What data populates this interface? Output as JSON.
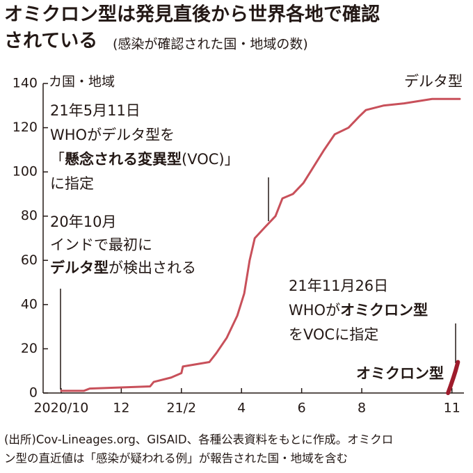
{
  "chart_data": {
    "type": "line",
    "title": [
      "オミクロン型は発見直後から世界各地で確認",
      "されている"
    ],
    "subtitle": "(感染が確認された国・地域の数)",
    "y_label": "カ国・地域",
    "xlim": [
      -0.6,
      13.4
    ],
    "ylim": [
      0,
      140
    ],
    "xticks": [
      {
        "value": 0,
        "label": "2020/10"
      },
      {
        "value": 2,
        "label": "12"
      },
      {
        "value": 4,
        "label": "21/2"
      },
      {
        "value": 6,
        "label": "4"
      },
      {
        "value": 8,
        "label": "6"
      },
      {
        "value": 10,
        "label": "8"
      },
      {
        "value": 13,
        "label": "11"
      }
    ],
    "yticks": [
      0,
      20,
      40,
      60,
      80,
      100,
      120,
      140
    ],
    "series": [
      {
        "name": "デルタ型",
        "color": "#c8505a",
        "width": 3,
        "x": [
          0,
          0.76,
          0.95,
          2.96,
          3.08,
          3.66,
          4.0,
          4.05,
          4.93,
          5.16,
          5.51,
          5.86,
          6.09,
          6.27,
          6.44,
          6.78,
          7.13,
          7.36,
          7.71,
          8.06,
          8.29,
          8.75,
          9.1,
          9.56,
          9.91,
          10.14,
          10.72,
          11.41,
          12.34,
          13.26
        ],
        "values": [
          1,
          1,
          2,
          3,
          5,
          7,
          9,
          12,
          14,
          18,
          25,
          35,
          45,
          60,
          70,
          75,
          80,
          88,
          90,
          95,
          100,
          110,
          117,
          120,
          125,
          128,
          130,
          131,
          133,
          133
        ]
      },
      {
        "name": "オミクロン型",
        "color": "#9e1c2c",
        "width": 6,
        "x": [
          12.87,
          12.95,
          13.05,
          13.12,
          13.2
        ],
        "values": [
          0,
          3,
          7,
          10,
          14
        ]
      }
    ],
    "annotations": [
      {
        "lines": [
          [
            {
              "text": "21年5月11日"
            }
          ],
          [
            {
              "text": "WHOがデルタ型を"
            }
          ],
          [
            {
              "text": "「"
            },
            {
              "text": "懸念される変異型",
              "bold": true
            },
            {
              "text": "(VOC)」"
            }
          ],
          [
            {
              "text": "に指定"
            }
          ]
        ]
      },
      {
        "lines": [
          [
            {
              "text": "20年10月"
            }
          ],
          [
            {
              "text": "インドで最初に"
            }
          ],
          [
            {
              "text": "デルタ型",
              "bold": true
            },
            {
              "text": "が検出される"
            }
          ]
        ]
      },
      {
        "lines": [
          [
            {
              "text": "21年11月26日"
            }
          ],
          [
            {
              "text": "WHOが"
            },
            {
              "text": "オミクロン型",
              "bold": true
            }
          ],
          [
            {
              "text": "をVOCに指定"
            }
          ]
        ]
      }
    ],
    "source": [
      "(出所)Cov-Lineages.org、GISAID、各種公表資料をもとに作成。オミクロ",
      "ン型の直近値は「感染が疑われる例」が報告された国・地域を含む"
    ]
  }
}
